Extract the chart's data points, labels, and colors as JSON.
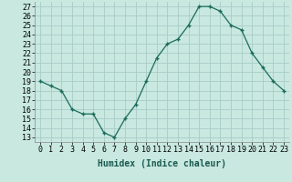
{
  "x": [
    0,
    1,
    2,
    3,
    4,
    5,
    6,
    7,
    8,
    9,
    10,
    11,
    12,
    13,
    14,
    15,
    16,
    17,
    18,
    19,
    20,
    21,
    22,
    23
  ],
  "y": [
    19,
    18.5,
    18,
    16,
    15.5,
    15.5,
    13.5,
    13,
    15,
    16.5,
    19,
    21.5,
    23,
    23.5,
    25,
    27,
    27,
    26.5,
    25,
    24.5,
    22,
    20.5,
    19,
    18
  ],
  "line_color": "#1a6b5a",
  "marker_color": "#1a6b5a",
  "bg_color": "#c8e8e0",
  "grid_color": "#aaccc8",
  "xlabel": "Humidex (Indice chaleur)",
  "ylabel_ticks": [
    13,
    14,
    15,
    16,
    17,
    18,
    19,
    20,
    21,
    22,
    23,
    24,
    25,
    26,
    27
  ],
  "ylim": [
    12.5,
    27.5
  ],
  "xlim": [
    -0.5,
    23.5
  ],
  "xtick_labels": [
    "0",
    "1",
    "2",
    "3",
    "4",
    "5",
    "6",
    "7",
    "8",
    "9",
    "10",
    "11",
    "12",
    "13",
    "14",
    "15",
    "16",
    "17",
    "18",
    "19",
    "20",
    "21",
    "22",
    "23"
  ],
  "label_fontsize": 7,
  "tick_fontsize": 6
}
